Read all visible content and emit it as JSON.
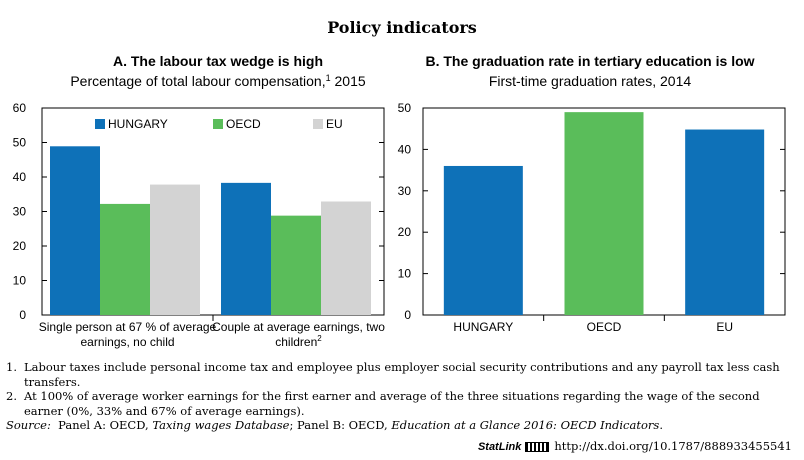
{
  "title": "Policy indicators",
  "chart_data": [
    {
      "type": "bar",
      "title": "A. The labour tax wedge is high",
      "subtitle": "Percentage of total labour compensation,",
      "subtitle_sup": "1",
      "subtitle_tail": " 2015",
      "ylim": [
        0,
        60
      ],
      "yticks": [
        0,
        10,
        20,
        30,
        40,
        50,
        60
      ],
      "grid": false,
      "legend_position": "top-left",
      "categories": [
        {
          "lines": [
            "Single person at 67 % of average",
            "earnings, no child"
          ],
          "sup": ""
        },
        {
          "lines": [
            "Couple at average earnings, two",
            "children"
          ],
          "sup": "2"
        }
      ],
      "series": [
        {
          "name": "HUNGARY",
          "color": "#0e71b8",
          "values": [
            48.9,
            38.3
          ]
        },
        {
          "name": "OECD",
          "color": "#5abd5a",
          "values": [
            32.2,
            28.8
          ]
        },
        {
          "name": "EU",
          "color": "#d3d3d3",
          "values": [
            37.8,
            32.9
          ]
        }
      ]
    },
    {
      "type": "bar",
      "title": "B. The graduation rate in tertiary education is low",
      "subtitle": "First-time graduation rates, 2014",
      "ylim": [
        0,
        50
      ],
      "yticks": [
        0,
        10,
        20,
        30,
        40,
        50
      ],
      "grid": false,
      "categories": [
        "HUNGARY",
        "OECD",
        "EU"
      ],
      "values": [
        36.0,
        49.0,
        44.8
      ],
      "colors": [
        "#0e71b8",
        "#5abd5a",
        "#0e71b8"
      ]
    }
  ],
  "notes": [
    {
      "num": "1.",
      "text": "Labour taxes include personal income tax and employee plus employer social security contributions and any payroll tax less cash transfers."
    },
    {
      "num": "2.",
      "text": "At 100% of average worker earnings for the first earner and average of the three situations regarding the wage of the second earner (0%, 33% and 67% of average earnings)."
    }
  ],
  "source": {
    "label": "Source:",
    "a_prefix": "  Panel A: OECD, ",
    "a_title": "Taxing wages Database",
    "b_prefix": "; Panel B: OECD, ",
    "b_title": "Education at a Glance 2016: OECD Indicators",
    "end": "."
  },
  "statlink": {
    "brand": "StatLink",
    "url": "http://dx.doi.org/10.1787/888933455541"
  }
}
